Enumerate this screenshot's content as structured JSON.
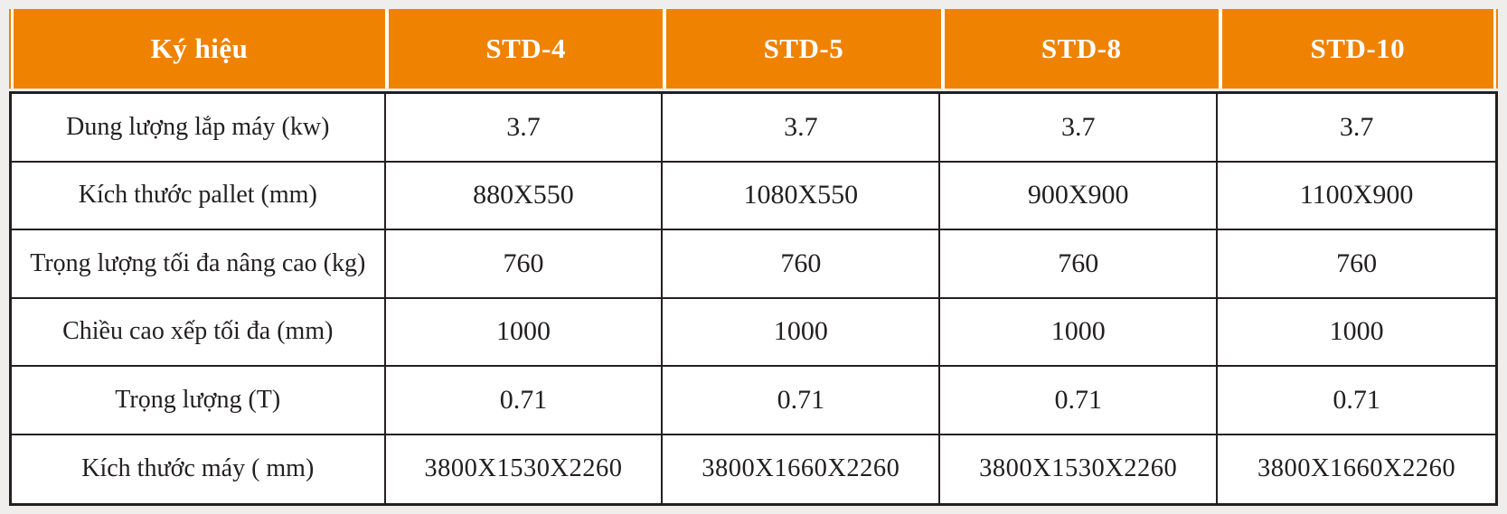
{
  "colors": {
    "header_bg": "#ef8301",
    "header_text": "#ffffff",
    "border": "#231f20",
    "page_bg": "#efeeec"
  },
  "table": {
    "header": {
      "label": "Ký hiệu",
      "columns": [
        "STD-4",
        "STD-5",
        "STD-8",
        "STD-10"
      ]
    },
    "rows": [
      {
        "label": "Dung lượng lắp máy (kw)",
        "values": [
          "3.7",
          "3.7",
          "3.7",
          "3.7"
        ]
      },
      {
        "label": "Kích thước pallet (mm)",
        "values": [
          "880X550",
          "1080X550",
          "900X900",
          "1100X900"
        ]
      },
      {
        "label": "Trọng lượng tối đa nâng cao (kg)",
        "values": [
          "760",
          "760",
          "760",
          "760"
        ]
      },
      {
        "label": "Chiều cao xếp tối đa (mm)",
        "values": [
          "1000",
          "1000",
          "1000",
          "1000"
        ]
      },
      {
        "label": "Trọng lượng (T)",
        "values": [
          "0.71",
          "0.71",
          "0.71",
          "0.71"
        ]
      },
      {
        "label": "Kích thước máy ( mm)",
        "values": [
          "3800X1530X2260",
          "3800X1660X2260",
          "3800X1530X2260",
          "3800X1660X2260"
        ]
      }
    ]
  }
}
